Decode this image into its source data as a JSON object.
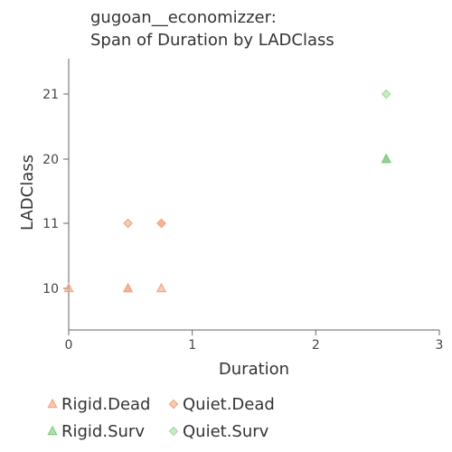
{
  "chart_data": {
    "type": "scatter",
    "title_lines": [
      "gugoan__economizzer:",
      "Span of Duration by LADClass"
    ],
    "xlabel": "Duration",
    "ylabel": "LADClass",
    "xlim": [
      0,
      3
    ],
    "x_ticks": [
      "0",
      "1",
      "2",
      "3"
    ],
    "y_categories": [
      "10",
      "11",
      "20",
      "21"
    ],
    "grid": false,
    "legend_position": "bottom",
    "series": [
      {
        "name": "Rigid.Dead",
        "marker": "triangle",
        "color": "#f4a582",
        "points": [
          {
            "x": 0.0,
            "y": "10"
          },
          {
            "x": 0.48,
            "y": "10"
          },
          {
            "x": 0.48,
            "y": "10"
          },
          {
            "x": 0.75,
            "y": "10"
          }
        ]
      },
      {
        "name": "Quiet.Dead",
        "marker": "diamond",
        "color": "#f4a582",
        "points": [
          {
            "x": 0.48,
            "y": "11"
          },
          {
            "x": 0.75,
            "y": "11"
          },
          {
            "x": 0.75,
            "y": "11"
          }
        ]
      },
      {
        "name": "Rigid.Surv",
        "marker": "triangle",
        "color": "#7fc97f",
        "points": [
          {
            "x": 2.57,
            "y": "20"
          },
          {
            "x": 2.57,
            "y": "20"
          }
        ]
      },
      {
        "name": "Quiet.Surv",
        "marker": "diamond",
        "color": "#a6dba0",
        "points": [
          {
            "x": 2.57,
            "y": "21"
          }
        ]
      }
    ]
  }
}
